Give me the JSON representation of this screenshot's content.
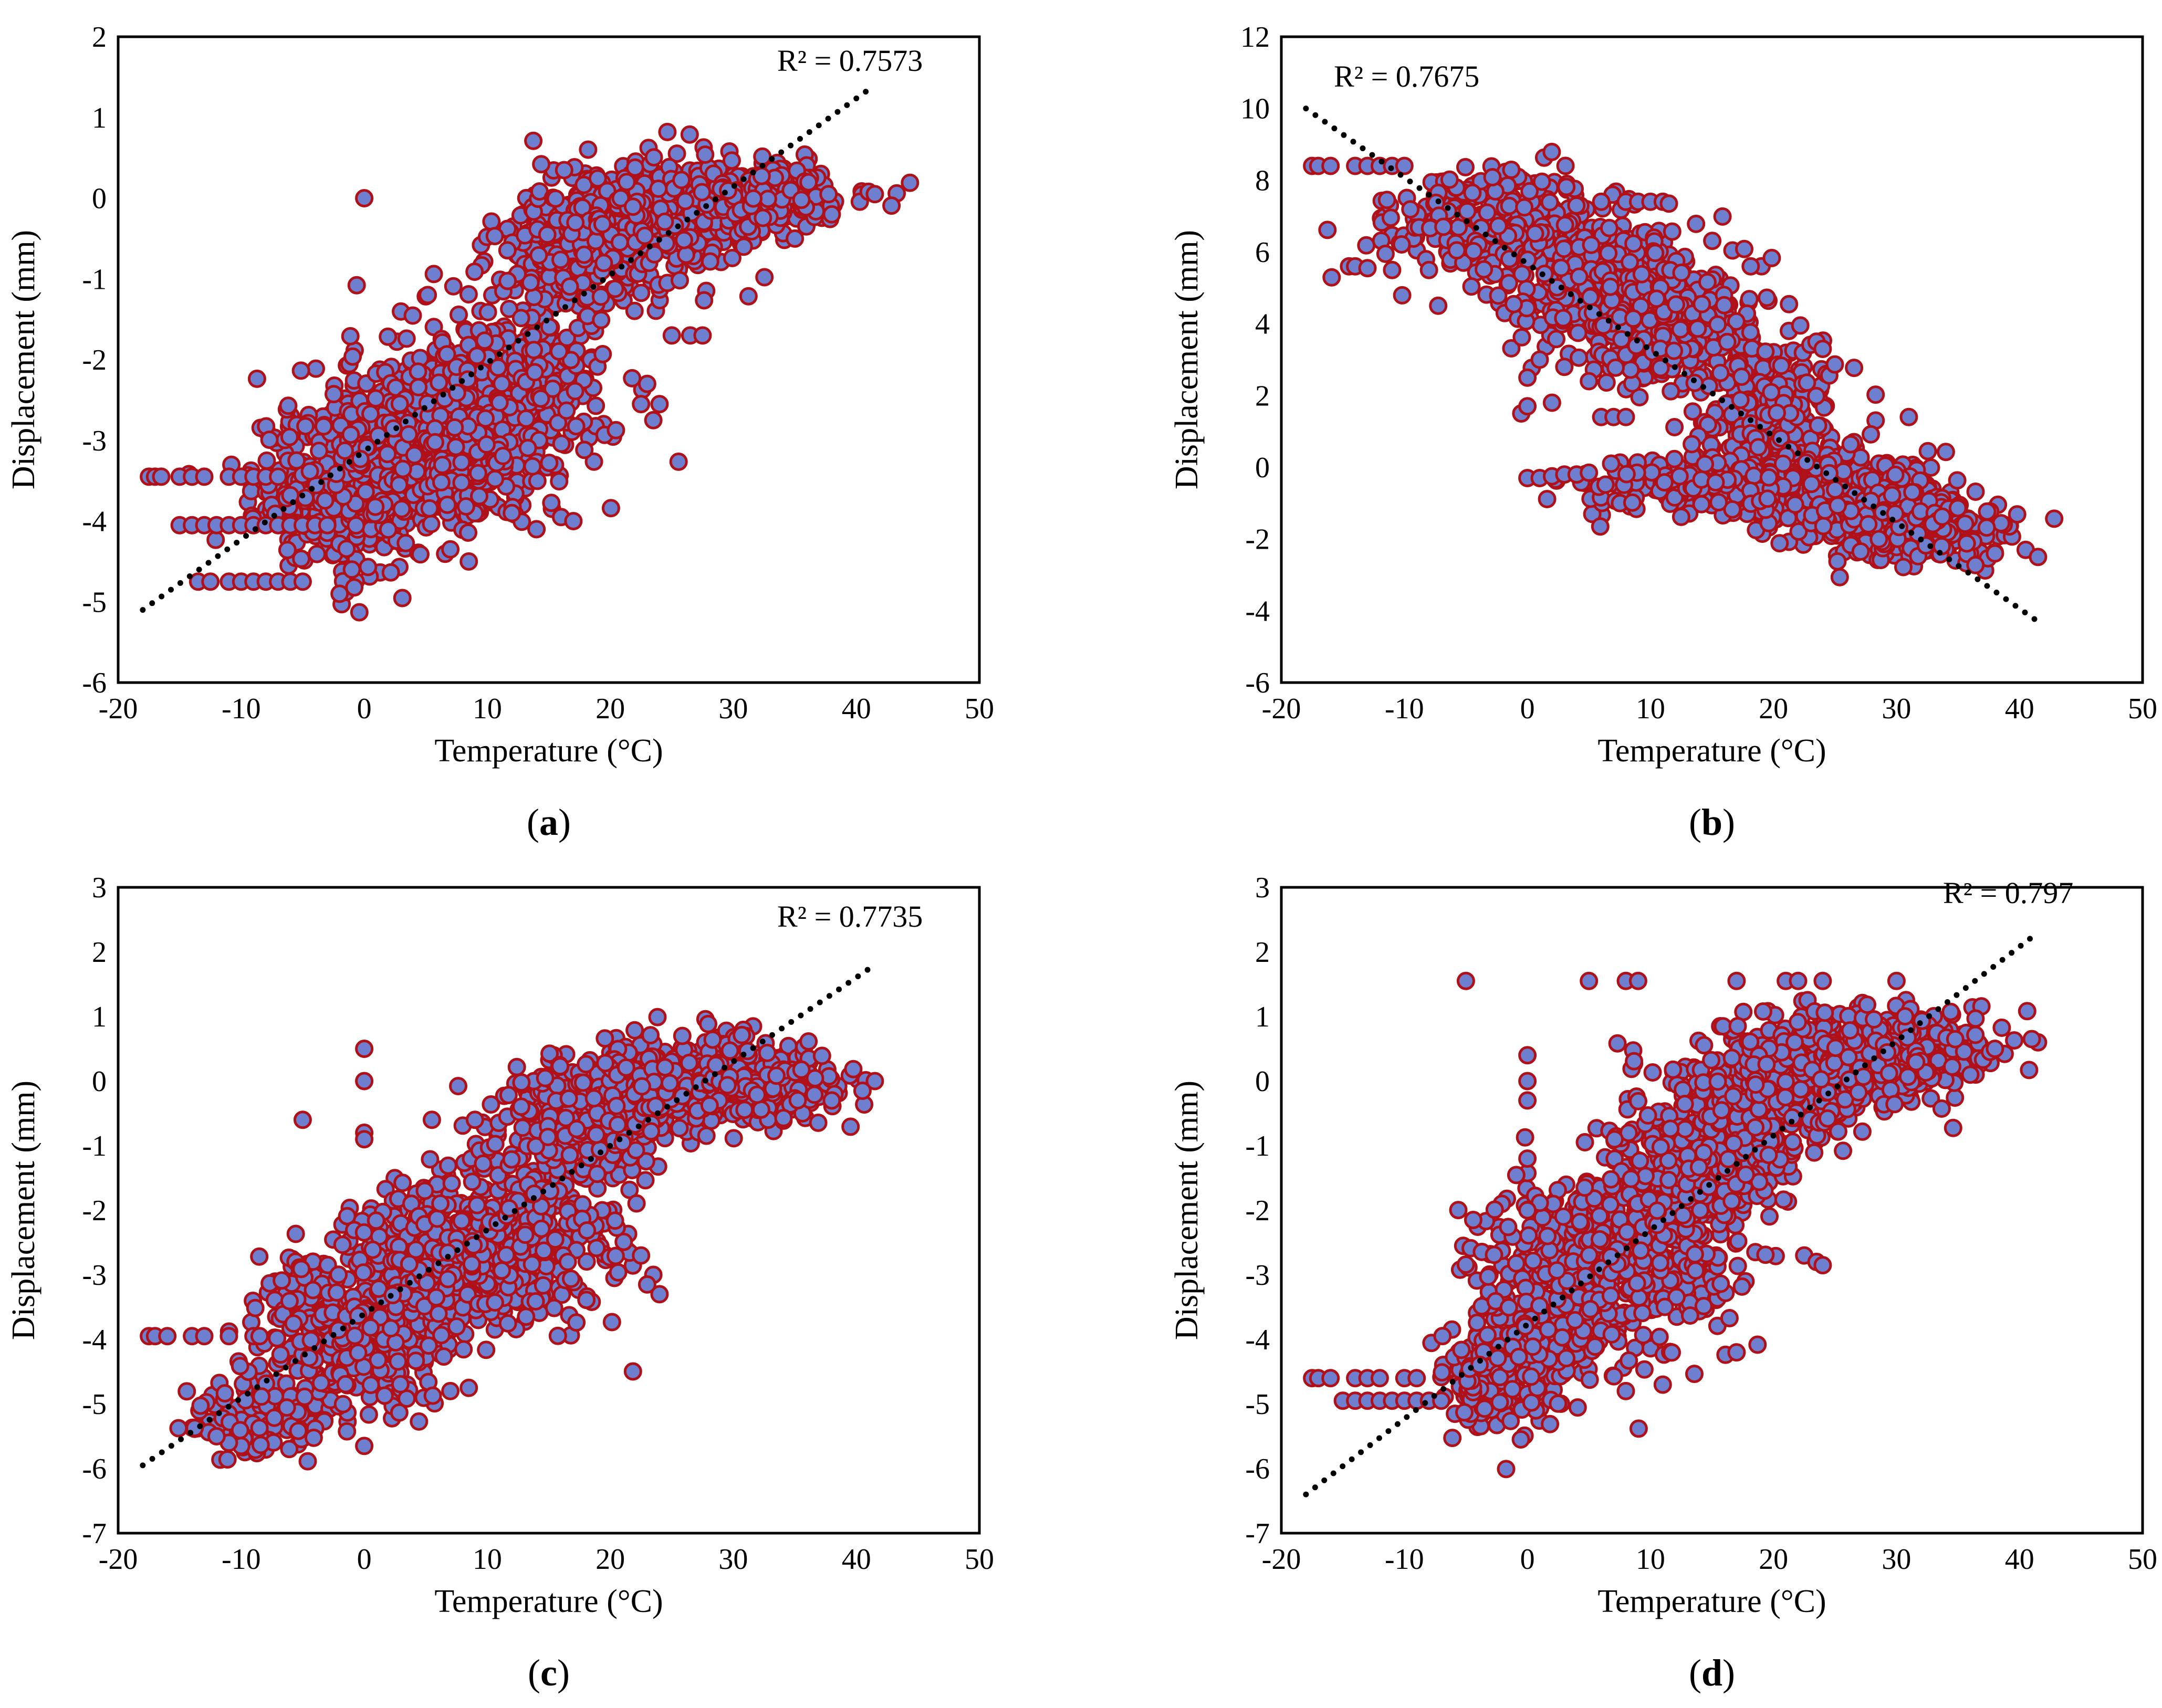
{
  "figure": {
    "panels": [
      "a",
      "b",
      "c",
      "d"
    ]
  },
  "colors": {
    "marker_fill": "#6f7fcf",
    "marker_edge": "#b01018",
    "trendline": "#000000",
    "axis": "#000000"
  },
  "chart_data": [
    {
      "id": "a",
      "type": "scatter",
      "caption": "a",
      "xlabel": "Temperature (°C)",
      "ylabel": "Displacement (mm)",
      "xlim": [
        -20,
        50
      ],
      "ylim": [
        -6,
        2
      ],
      "xticks": [
        "-20",
        "-10",
        "0",
        "10",
        "20",
        "30",
        "40",
        "50"
      ],
      "yticks": [
        "-6",
        "-5",
        "-4",
        "-3",
        "-2",
        "-1",
        "0",
        "1",
        "2"
      ],
      "r2_label": "R² = 0.7573",
      "trendline": {
        "x": [
          -18,
          41.5
        ],
        "y": [
          -5.1,
          1.4
        ]
      },
      "cloud": [
        {
          "x": -2,
          "y": -3.6,
          "sx": 3.5,
          "sy": 0.5,
          "n": 420
        },
        {
          "x": 5,
          "y": -2.8,
          "sx": 3.5,
          "sy": 0.5,
          "n": 420
        },
        {
          "x": 12,
          "y": -2.4,
          "sx": 4,
          "sy": 0.5,
          "n": 330
        },
        {
          "x": 17,
          "y": -0.6,
          "sx": 3,
          "sy": 0.4,
          "n": 320
        },
        {
          "x": 25,
          "y": -0.2,
          "sx": 4.5,
          "sy": 0.35,
          "n": 400
        },
        {
          "x": 33,
          "y": 0.05,
          "sx": 3,
          "sy": 0.2,
          "n": 150
        },
        {
          "x": 9,
          "y": -3.3,
          "sx": 3.5,
          "sy": 0.4,
          "n": 140
        }
      ],
      "points": [
        [
          -17.5,
          -3.45
        ],
        [
          -17,
          -3.45
        ],
        [
          -16.5,
          -3.45
        ],
        [
          -15,
          -3.45
        ],
        [
          -14,
          -3.45
        ],
        [
          -13,
          -3.45
        ],
        [
          -11,
          -3.45
        ],
        [
          -10,
          -3.45
        ],
        [
          -9,
          -3.45
        ],
        [
          -8,
          -3.45
        ],
        [
          -7,
          -3.45
        ],
        [
          -15,
          -4.05
        ],
        [
          -14,
          -4.05
        ],
        [
          -13,
          -4.05
        ],
        [
          -12,
          -4.05
        ],
        [
          -11,
          -4.05
        ],
        [
          -10,
          -4.05
        ],
        [
          -9,
          -4.05
        ],
        [
          -8,
          -4.05
        ],
        [
          -7,
          -4.05
        ],
        [
          -6,
          -4.05
        ],
        [
          -5,
          -4.05
        ],
        [
          -4,
          -4.05
        ],
        [
          -3,
          -4.05
        ],
        [
          -13.5,
          -4.75
        ],
        [
          -12.5,
          -4.75
        ],
        [
          -11,
          -4.75
        ],
        [
          -10,
          -4.75
        ],
        [
          -9,
          -4.75
        ],
        [
          -8,
          -4.75
        ],
        [
          -7,
          -4.75
        ],
        [
          -6,
          -4.75
        ],
        [
          -5,
          -4.75
        ],
        [
          0,
          0.0
        ],
        [
          41,
          0.08
        ],
        [
          41.5,
          0.05
        ],
        [
          38,
          -0.2
        ],
        [
          35,
          -0.5
        ],
        [
          23,
          -2.3
        ],
        [
          24,
          -2.55
        ],
        [
          23.5,
          -2.75
        ],
        [
          22.5,
          -2.55
        ],
        [
          25,
          -1.7
        ],
        [
          26.5,
          -1.7
        ],
        [
          27.5,
          -1.7
        ],
        [
          12,
          -3.9
        ],
        [
          14,
          -4.1
        ],
        [
          16,
          -3.95
        ],
        [
          17,
          -4.0
        ],
        [
          7,
          -4.35
        ],
        [
          -2,
          -4.9
        ],
        [
          -1,
          -4.6
        ]
      ]
    },
    {
      "id": "b",
      "type": "scatter",
      "caption": "b",
      "xlabel": "Temperature (°C)",
      "ylabel": "Displacement (mm)",
      "xlim": [
        -20,
        50
      ],
      "ylim": [
        -6,
        12
      ],
      "xticks": [
        "-20",
        "-10",
        "0",
        "10",
        "20",
        "30",
        "40",
        "50"
      ],
      "yticks": [
        "-6",
        "-4",
        "-2",
        "0",
        "2",
        "4",
        "6",
        "8",
        "10",
        "12"
      ],
      "r2_label": "R² = 0.7675",
      "trendline": {
        "x": [
          -18,
          41.5
        ],
        "y": [
          10.0,
          -4.3
        ]
      },
      "cloud": [
        {
          "x": -3,
          "y": 6.9,
          "sx": 4,
          "sy": 0.7,
          "n": 320
        },
        {
          "x": 5,
          "y": 5.3,
          "sx": 4,
          "sy": 0.8,
          "n": 360
        },
        {
          "x": 12,
          "y": 3.8,
          "sx": 4,
          "sy": 0.8,
          "n": 330
        },
        {
          "x": 20,
          "y": 1.3,
          "sx": 3,
          "sy": 1.0,
          "n": 250
        },
        {
          "x": 24,
          "y": -0.6,
          "sx": 4,
          "sy": 0.6,
          "n": 320
        },
        {
          "x": 31,
          "y": -1.6,
          "sx": 4,
          "sy": 0.5,
          "n": 260
        },
        {
          "x": 14,
          "y": -0.5,
          "sx": 5,
          "sy": 0.4,
          "n": 170
        }
      ],
      "points": [
        [
          -17.5,
          8.4
        ],
        [
          -17,
          8.4
        ],
        [
          -16,
          8.4
        ],
        [
          -14,
          8.4
        ],
        [
          -13,
          8.4
        ],
        [
          -12,
          8.4
        ],
        [
          -11,
          8.4
        ],
        [
          -10,
          8.4
        ],
        [
          -14.5,
          5.6
        ],
        [
          -14,
          5.6
        ],
        [
          -13,
          5.55
        ],
        [
          -11,
          5.5
        ],
        [
          -8,
          5.5
        ],
        [
          6,
          7.4
        ],
        [
          8,
          7.4
        ],
        [
          9,
          7.4
        ],
        [
          10,
          7.4
        ],
        [
          11,
          7.4
        ],
        [
          11.5,
          7.35
        ],
        [
          0,
          -0.3
        ],
        [
          1,
          -0.3
        ],
        [
          2,
          -0.25
        ],
        [
          3,
          -0.2
        ],
        [
          4,
          -0.2
        ],
        [
          5,
          -0.15
        ],
        [
          -0.5,
          1.5
        ],
        [
          0,
          1.7
        ],
        [
          0,
          2.5
        ],
        [
          2,
          1.8
        ],
        [
          6,
          1.4
        ],
        [
          7,
          1.4
        ],
        [
          8,
          1.4
        ],
        [
          1,
          3.0
        ],
        [
          3,
          2.8
        ],
        [
          5,
          2.4
        ],
        [
          40.5,
          -2.3
        ],
        [
          41.5,
          -2.5
        ],
        [
          38,
          -2.4
        ],
        [
          23.5,
          3.5
        ],
        [
          24,
          3.3
        ],
        [
          31,
          1.4
        ]
      ]
    },
    {
      "id": "c",
      "type": "scatter",
      "caption": "c",
      "xlabel": "Temperature (°C)",
      "ylabel": "Displacement (mm)",
      "xlim": [
        -20,
        50
      ],
      "ylim": [
        -7,
        3
      ],
      "xticks": [
        "-20",
        "-10",
        "0",
        "10",
        "20",
        "30",
        "40",
        "50"
      ],
      "yticks": [
        "-7",
        "-6",
        "-5",
        "-4",
        "-3",
        "-2",
        "-1",
        "0",
        "1",
        "2",
        "3"
      ],
      "r2_label": "R² = 0.7735",
      "trendline": {
        "x": [
          -18,
          41.5
        ],
        "y": [
          -5.95,
          1.8
        ]
      },
      "cloud": [
        {
          "x": -8,
          "y": -5.2,
          "sx": 3,
          "sy": 0.3,
          "n": 160
        },
        {
          "x": -1,
          "y": -3.9,
          "sx": 3.5,
          "sy": 0.6,
          "n": 420
        },
        {
          "x": 6,
          "y": -2.8,
          "sx": 3.5,
          "sy": 0.6,
          "n": 420
        },
        {
          "x": 13,
          "y": -2.3,
          "sx": 4,
          "sy": 0.7,
          "n": 330
        },
        {
          "x": 18,
          "y": -0.6,
          "sx": 3,
          "sy": 0.4,
          "n": 300
        },
        {
          "x": 26,
          "y": 0.0,
          "sx": 4.5,
          "sy": 0.35,
          "n": 400
        },
        {
          "x": 33,
          "y": -0.1,
          "sx": 3,
          "sy": 0.3,
          "n": 160
        }
      ],
      "points": [
        [
          -17.5,
          -3.95
        ],
        [
          -17,
          -3.95
        ],
        [
          -16,
          -3.95
        ],
        [
          -14,
          -3.95
        ],
        [
          -13,
          -3.95
        ],
        [
          -11,
          -3.95
        ],
        [
          -9,
          -3.95
        ],
        [
          -8.5,
          -3.95
        ],
        [
          0,
          0.5
        ],
        [
          0,
          0.0
        ],
        [
          0,
          -0.8
        ],
        [
          0,
          -0.9
        ],
        [
          -5,
          -0.6
        ],
        [
          5.5,
          -0.6
        ],
        [
          9,
          -0.6
        ],
        [
          41.5,
          0.0
        ],
        [
          40.5,
          -0.15
        ],
        [
          38,
          -0.3
        ],
        [
          22.5,
          -2.7
        ],
        [
          23.5,
          -3.0
        ],
        [
          24,
          -3.3
        ],
        [
          23,
          -3.15
        ],
        [
          7,
          -4.8
        ],
        [
          8.5,
          -4.75
        ],
        [
          0,
          -5.65
        ],
        [
          -10,
          -5.65
        ],
        [
          -11,
          -5.6
        ],
        [
          -12,
          -5.5
        ]
      ]
    },
    {
      "id": "d",
      "type": "scatter",
      "caption": "d",
      "xlabel": "Temperature (°C)",
      "ylabel": "Displacement (mm)",
      "xlim": [
        -20,
        50
      ],
      "ylim": [
        -7,
        3
      ],
      "xticks": [
        "-20",
        "-10",
        "0",
        "10",
        "20",
        "30",
        "40",
        "50"
      ],
      "yticks": [
        "-7",
        "-6",
        "-5",
        "-4",
        "-3",
        "-2",
        "-1",
        "0",
        "1",
        "2",
        "3"
      ],
      "r2_label": "R² = 0.797",
      "trendline": {
        "x": [
          -18,
          41.5
        ],
        "y": [
          -6.4,
          2.3
        ]
      },
      "cloud": [
        {
          "x": -2,
          "y": -4.5,
          "sx": 2.5,
          "sy": 0.45,
          "n": 260
        },
        {
          "x": 3,
          "y": -3.1,
          "sx": 3.5,
          "sy": 0.7,
          "n": 380
        },
        {
          "x": 10,
          "y": -2.4,
          "sx": 4,
          "sy": 0.8,
          "n": 380
        },
        {
          "x": 16,
          "y": -0.9,
          "sx": 3.5,
          "sy": 0.6,
          "n": 330
        },
        {
          "x": 23,
          "y": 0.2,
          "sx": 4,
          "sy": 0.4,
          "n": 380
        },
        {
          "x": 31,
          "y": 0.5,
          "sx": 3.5,
          "sy": 0.3,
          "n": 240
        }
      ],
      "points": [
        [
          -17.5,
          -4.6
        ],
        [
          -17,
          -4.6
        ],
        [
          -16,
          -4.6
        ],
        [
          -14,
          -4.6
        ],
        [
          -13,
          -4.6
        ],
        [
          -12,
          -4.6
        ],
        [
          -10,
          -4.6
        ],
        [
          -9,
          -4.6
        ],
        [
          -15,
          -4.95
        ],
        [
          -14,
          -4.95
        ],
        [
          -13,
          -4.95
        ],
        [
          -12,
          -4.95
        ],
        [
          -11,
          -4.95
        ],
        [
          -10,
          -4.95
        ],
        [
          -9,
          -4.95
        ],
        [
          -8,
          -4.95
        ],
        [
          -7,
          -4.95
        ],
        [
          -5,
          1.55
        ],
        [
          5,
          1.55
        ],
        [
          8,
          1.55
        ],
        [
          9,
          1.55
        ],
        [
          17,
          1.55
        ],
        [
          21,
          1.55
        ],
        [
          22,
          1.55
        ],
        [
          24,
          1.55
        ],
        [
          30,
          1.55
        ],
        [
          0,
          0.4
        ],
        [
          0,
          0.0
        ],
        [
          0,
          -0.3
        ],
        [
          0,
          -1.2
        ],
        [
          0,
          -2.0
        ],
        [
          41.5,
          0.6
        ],
        [
          41,
          0.65
        ],
        [
          38,
          0.5
        ],
        [
          36,
          0.1
        ],
        [
          22.5,
          -2.7
        ],
        [
          23.5,
          -2.8
        ],
        [
          24,
          -2.85
        ],
        [
          17,
          -4.2
        ],
        [
          11,
          -4.7
        ],
        [
          8,
          -4.8
        ]
      ]
    }
  ]
}
